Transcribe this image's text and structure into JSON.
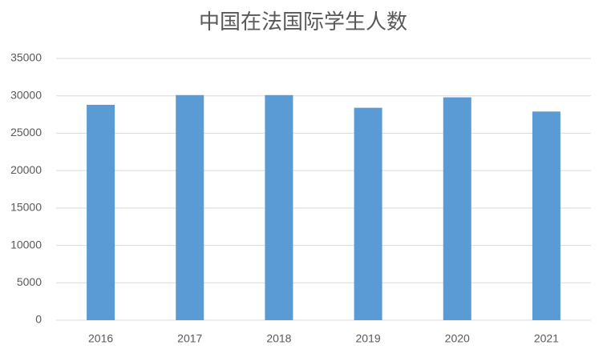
{
  "chart_data": {
    "type": "bar",
    "title": "中国在法国际学生人数",
    "categories": [
      "2016",
      "2017",
      "2018",
      "2019",
      "2020",
      "2021"
    ],
    "values": [
      28800,
      30100,
      30100,
      28400,
      29800,
      27900
    ],
    "color": "#5b9bd5",
    "ylim": [
      0,
      35000
    ],
    "yticks": [
      0,
      5000,
      10000,
      15000,
      20000,
      25000,
      30000,
      35000
    ],
    "grid": true
  }
}
